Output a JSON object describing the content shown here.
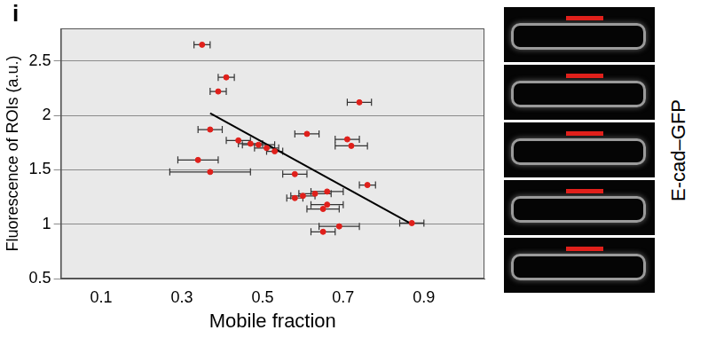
{
  "chart_data": {
    "type": "scatter",
    "panel": "i",
    "x_label": "Mobile fraction",
    "y_label": "Fluorescence of ROIs (a.u.)",
    "x": [
      0.35,
      0.41,
      0.39,
      0.74,
      0.37,
      0.61,
      0.44,
      0.47,
      0.49,
      0.51,
      0.53,
      0.71,
      0.72,
      0.34,
      0.37,
      0.58,
      0.76,
      0.66,
      0.63,
      0.6,
      0.58,
      0.66,
      0.65,
      0.69,
      0.65,
      0.87
    ],
    "values": [
      2.65,
      2.35,
      2.22,
      2.12,
      1.87,
      1.83,
      1.77,
      1.74,
      1.73,
      1.7,
      1.67,
      1.78,
      1.72,
      1.59,
      1.48,
      1.46,
      1.36,
      1.3,
      1.28,
      1.26,
      1.24,
      1.18,
      1.14,
      0.98,
      0.93,
      1.01
    ],
    "x_error": [
      0.02,
      0.02,
      0.02,
      0.03,
      0.03,
      0.03,
      0.03,
      0.03,
      0.04,
      0.03,
      0.02,
      0.03,
      0.04,
      0.05,
      0.1,
      0.03,
      0.02,
      0.04,
      0.04,
      0.03,
      0.02,
      0.04,
      0.04,
      0.05,
      0.03,
      0.03
    ],
    "color": "#e0201b",
    "marker": "circle",
    "fit_line": {
      "x": [
        0.37,
        0.87
      ],
      "y": [
        2.02,
        1.0
      ]
    },
    "xlim": [
      0,
      1.05
    ],
    "ylim": [
      0.5,
      2.8
    ],
    "xticks": [
      0.1,
      0.3,
      0.5,
      0.7,
      0.9
    ],
    "yticks": [
      0.5,
      1,
      1.5,
      2,
      2.5
    ],
    "grid": true,
    "image_label": "E-cad–GFP"
  }
}
